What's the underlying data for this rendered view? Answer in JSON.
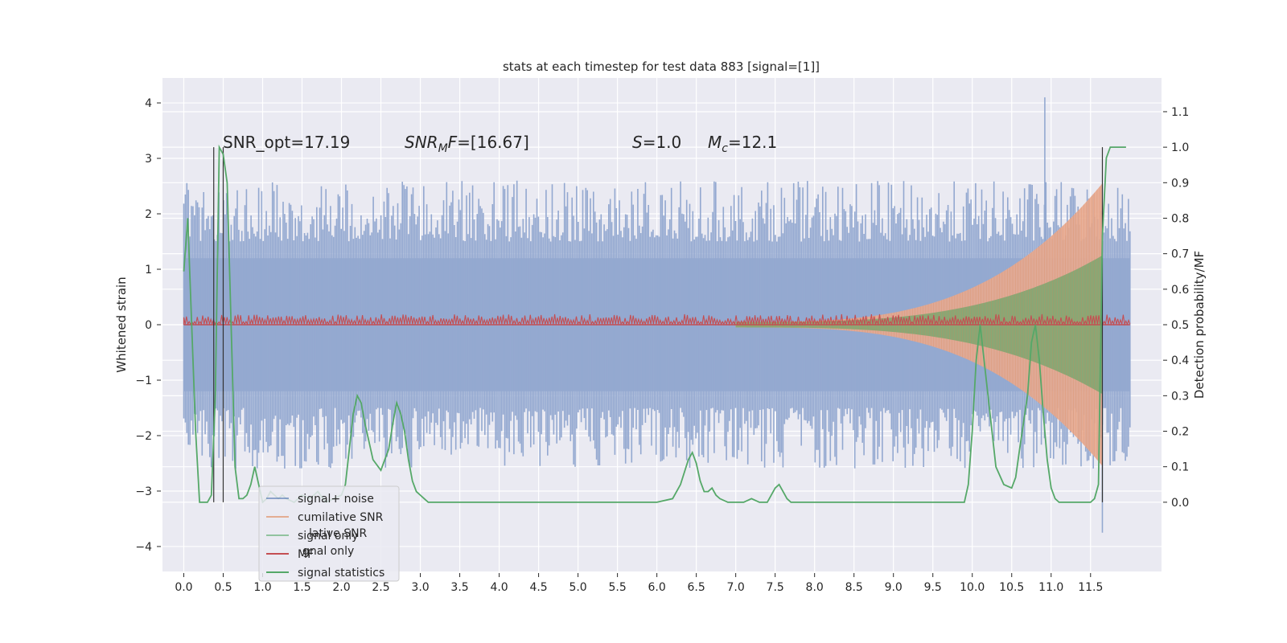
{
  "chart_data": {
    "type": "line",
    "title": "stats at each timestep for test data 883 [signal=[1]]",
    "ylabel_left": "Whitened strain",
    "ylabel_right": "Detection probability/MF",
    "annotations": [
      "SNR_opt=17.19",
      "SNR_MF=[16.67]",
      "S=1.0",
      "M_c=12.1"
    ],
    "xlim": [
      -0.27,
      12.4
    ],
    "ylim_left": [
      -4.45,
      4.45
    ],
    "ylim_right": [
      -0.195,
      1.195
    ],
    "x_ticks": [
      0.0,
      0.5,
      1.0,
      1.5,
      2.0,
      2.5,
      3.0,
      3.5,
      4.0,
      4.5,
      5.0,
      5.5,
      6.0,
      6.5,
      7.0,
      7.5,
      8.0,
      8.5,
      9.0,
      9.5,
      10.0,
      10.5,
      11.0,
      11.5
    ],
    "x_tick_labels": [
      "0.0",
      "0.5",
      "1.0",
      "1.5",
      "2.0",
      "2.5",
      "3.0",
      "3.5",
      "4.0",
      "4.5",
      "5.0",
      "5.5",
      "6.0",
      "6.5",
      "7.0",
      "7.5",
      "8.0",
      "8.5",
      "9.0",
      "9.5",
      "10.0",
      "10.5",
      "11.0",
      "11.5"
    ],
    "y_ticks_left": [
      -4,
      -3,
      -2,
      -1,
      0,
      1,
      2,
      3,
      4
    ],
    "y_tick_labels_left": [
      "−4",
      "−3",
      "−2",
      "−1",
      "0",
      "1",
      "2",
      "3",
      "4"
    ],
    "y_ticks_right": [
      0.0,
      0.1,
      0.2,
      0.3,
      0.4,
      0.5,
      0.6,
      0.7,
      0.8,
      0.9,
      1.0,
      1.1
    ],
    "y_tick_labels_right": [
      "0.0",
      "0.1",
      "0.2",
      "0.3",
      "0.4",
      "0.5",
      "0.6",
      "0.7",
      "0.8",
      "0.9",
      "1.0",
      "1.1"
    ],
    "grid": true,
    "legend_position": "lower-left",
    "legend": [
      {
        "label": "signal+ noise",
        "color": "#4c72b0"
      },
      {
        "label": "cumilative SNR",
        "color": "#dd8452"
      },
      {
        "label": "signal only",
        "color": "#55a868"
      },
      {
        "label": "MF",
        "color": "#c44e52"
      },
      {
        "label": "signal statistics",
        "color": "#55a868"
      }
    ],
    "legend_ghost": [
      "lative SNR",
      "gnal only"
    ],
    "series": [
      {
        "name": "signal+ noise",
        "kind": "noise-band",
        "x_range": [
          0.0,
          12.0
        ],
        "amplitude_typical": [
          -2.0,
          2.0
        ],
        "peak_max": 4.1,
        "peak_min": -3.75
      },
      {
        "name": "cumilative SNR",
        "kind": "chirp-envelope",
        "x_range": [
          7.0,
          11.65
        ],
        "envelope_end": 2.55
      },
      {
        "name": "signal only",
        "kind": "chirp-envelope",
        "x_range": [
          7.0,
          11.65
        ],
        "envelope_end": 1.25
      },
      {
        "name": "MF",
        "kind": "noise-band",
        "x_range": [
          0.0,
          12.0
        ],
        "level": 0.1
      },
      {
        "name": "signal statistics",
        "kind": "line",
        "x": [
          0.0,
          0.05,
          0.1,
          0.15,
          0.2,
          0.25,
          0.3,
          0.35,
          0.4,
          0.45,
          0.5,
          0.55,
          0.6,
          0.65,
          0.7,
          0.75,
          0.8,
          0.85,
          0.9,
          0.95,
          1.0,
          1.05,
          1.1,
          1.15,
          1.2,
          1.25,
          1.3,
          1.4,
          1.5,
          1.6,
          1.7,
          1.8,
          1.9,
          2.0,
          2.05,
          2.1,
          2.15,
          2.2,
          2.25,
          2.3,
          2.35,
          2.4,
          2.5,
          2.6,
          2.65,
          2.7,
          2.75,
          2.8,
          2.85,
          2.9,
          2.95,
          3.0,
          3.05,
          3.1,
          3.2,
          3.3,
          3.4,
          3.5,
          3.7,
          3.8,
          4.0,
          4.2,
          4.4,
          4.6,
          4.8,
          5.0,
          5.2,
          5.4,
          5.6,
          5.8,
          6.0,
          6.2,
          6.3,
          6.4,
          6.45,
          6.5,
          6.55,
          6.6,
          6.65,
          6.7,
          6.75,
          6.8,
          6.9,
          6.95,
          7.0,
          7.05,
          7.1,
          7.2,
          7.3,
          7.4,
          7.5,
          7.55,
          7.6,
          7.65,
          7.7,
          7.8,
          7.9,
          8.0,
          8.2,
          8.5,
          8.8,
          9.0,
          9.2,
          9.4,
          9.6,
          9.8,
          9.9,
          9.95,
          10.0,
          10.05,
          10.1,
          10.15,
          10.2,
          10.25,
          10.3,
          10.4,
          10.5,
          10.55,
          10.6,
          10.7,
          10.75,
          10.8,
          10.85,
          10.9,
          10.95,
          11.0,
          11.05,
          11.1,
          11.2,
          11.3,
          11.4,
          11.5,
          11.55,
          11.6,
          11.65,
          11.7,
          11.75,
          11.8,
          11.85,
          11.9,
          11.95
        ],
        "y": [
          0.65,
          0.8,
          0.5,
          0.2,
          0.0,
          0.0,
          0.0,
          0.02,
          0.3,
          1.0,
          0.98,
          0.9,
          0.5,
          0.1,
          0.01,
          0.01,
          0.02,
          0.05,
          0.1,
          0.05,
          0.0,
          0.01,
          0.03,
          0.02,
          0.01,
          0.02,
          0.01,
          0.0,
          0.02,
          0.01,
          0.03,
          0.0,
          0.01,
          0.02,
          0.05,
          0.15,
          0.25,
          0.3,
          0.28,
          0.22,
          0.17,
          0.12,
          0.09,
          0.15,
          0.22,
          0.28,
          0.25,
          0.2,
          0.12,
          0.06,
          0.03,
          0.02,
          0.01,
          0.0,
          0.0,
          0.0,
          0.0,
          0.0,
          0.0,
          0.0,
          0.0,
          0.0,
          0.0,
          0.0,
          0.0,
          0.0,
          0.0,
          0.0,
          0.0,
          0.0,
          0.0,
          0.01,
          0.05,
          0.12,
          0.14,
          0.11,
          0.06,
          0.03,
          0.03,
          0.04,
          0.02,
          0.01,
          0.0,
          0.0,
          0.0,
          0.0,
          0.0,
          0.01,
          0.0,
          0.0,
          0.04,
          0.05,
          0.03,
          0.01,
          0.0,
          0.0,
          0.0,
          0.0,
          0.0,
          0.0,
          0.0,
          0.0,
          0.0,
          0.0,
          0.0,
          0.0,
          0.0,
          0.05,
          0.2,
          0.4,
          0.5,
          0.4,
          0.3,
          0.2,
          0.1,
          0.05,
          0.04,
          0.07,
          0.15,
          0.3,
          0.45,
          0.5,
          0.4,
          0.25,
          0.12,
          0.04,
          0.01,
          0.0,
          0.0,
          0.0,
          0.0,
          0.0,
          0.01,
          0.05,
          0.75,
          0.97,
          1.0,
          1.0,
          1.0,
          1.0,
          1.0
        ]
      }
    ],
    "vertical_lines_x": [
      0.38,
      0.5,
      11.65
    ]
  }
}
